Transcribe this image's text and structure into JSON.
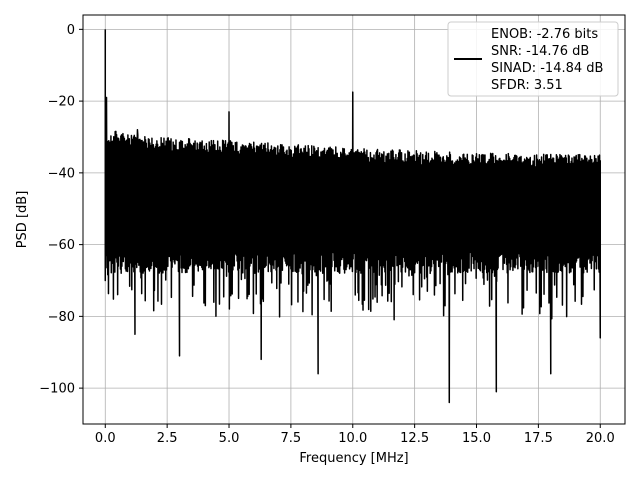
{
  "chart_data": {
    "type": "line",
    "xlabel": "Frequency [MHz]",
    "ylabel": "PSD [dB]",
    "xlim": [
      -0.9,
      21.0
    ],
    "ylim": [
      -110,
      4
    ],
    "x_ticks": [
      0.0,
      2.5,
      5.0,
      7.5,
      10.0,
      12.5,
      15.0,
      17.5,
      20.0
    ],
    "x_tick_labels": [
      "0.0",
      "2.5",
      "5.0",
      "7.5",
      "10.0",
      "12.5",
      "15.0",
      "17.5",
      "20.0"
    ],
    "y_ticks": [
      0,
      -20,
      -40,
      -60,
      -80,
      -100
    ],
    "y_tick_labels": [
      "0",
      "−20",
      "−40",
      "−60",
      "−80",
      "−100"
    ],
    "grid": true,
    "legend_position": "top-right",
    "legend": {
      "lines": [
        "ENOB: -2.76 bits",
        "SNR: -14.76 dB",
        "SINAD: -14.84 dB",
        "SFDR: 3.51"
      ]
    },
    "series": [
      {
        "color": "#000000",
        "band_top": [
          [
            0.0,
            -28
          ],
          [
            2.0,
            -30
          ],
          [
            5.0,
            -31
          ],
          [
            10.0,
            -33
          ],
          [
            15.0,
            -34.5
          ],
          [
            20.0,
            -35
          ]
        ],
        "band_bottom": [
          [
            0.0,
            -58
          ],
          [
            20.0,
            -58
          ]
        ],
        "noise_floor_range": [
          -62,
          -68
        ],
        "peaks": [
          {
            "x": 0.0,
            "y": 0
          },
          {
            "x": 0.05,
            "y": -19
          },
          {
            "x": 5.0,
            "y": -23
          },
          {
            "x": 10.0,
            "y": -17.5
          },
          {
            "x": 1.3,
            "y": -28
          }
        ],
        "dips": [
          {
            "x": 0.0,
            "y": -70
          },
          {
            "x": 1.2,
            "y": -85
          },
          {
            "x": 3.0,
            "y": -91
          },
          {
            "x": 6.3,
            "y": -92
          },
          {
            "x": 8.6,
            "y": -96
          },
          {
            "x": 13.9,
            "y": -104
          },
          {
            "x": 15.8,
            "y": -101
          },
          {
            "x": 18.0,
            "y": -96
          },
          {
            "x": 20.0,
            "y": -86
          }
        ]
      }
    ]
  }
}
